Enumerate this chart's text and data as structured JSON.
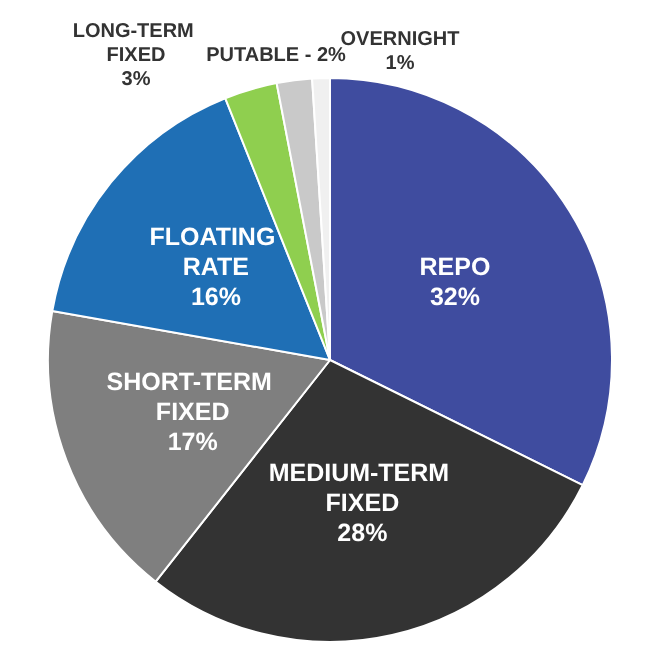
{
  "chart_data": {
    "type": "pie",
    "categories": [
      "REPO",
      "MEDIUM-TERM FIXED",
      "SHORT-TERM FIXED",
      "FLOATING RATE",
      "LONG-TERM FIXED",
      "PUTABLE - 2%",
      "OVERNIGHT"
    ],
    "values": [
      32,
      28,
      17,
      16,
      3,
      2,
      1
    ],
    "value_labels": [
      "32%",
      "28%",
      "17%",
      "16%",
      "3%",
      null,
      "1%"
    ],
    "colors": [
      "#3f4c9f",
      "#333333",
      "#7f7f7f",
      "#1f6fb5",
      "#8fcf4f",
      "#c9c9c9",
      "#f0f0f0"
    ]
  }
}
